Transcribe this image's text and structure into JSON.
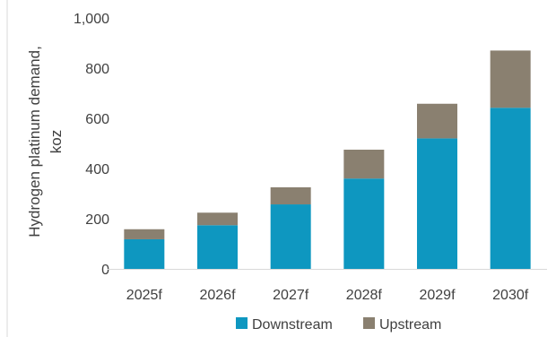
{
  "chart_data": {
    "type": "bar",
    "stacked": true,
    "categories": [
      "2025f",
      "2026f",
      "2027f",
      "2028f",
      "2029f",
      "2030f"
    ],
    "series": [
      {
        "name": "Downstream",
        "color": "#0e97c0",
        "values": [
          118,
          174,
          257,
          360,
          520,
          642
        ]
      },
      {
        "name": "Upstream",
        "color": "#8a8070",
        "values": [
          40,
          50,
          68,
          115,
          138,
          228
        ]
      }
    ],
    "title": "",
    "xlabel": "",
    "ylabel_lines": [
      "Hydrogen platinum demand,",
      "koz"
    ],
    "ylim": [
      0,
      1000
    ],
    "yticks": [
      "0",
      "200",
      "400",
      "600",
      "800",
      "1,000"
    ],
    "ytick_values": [
      0,
      200,
      400,
      600,
      800,
      1000
    ],
    "grid": false,
    "legend_position": "bottom"
  }
}
